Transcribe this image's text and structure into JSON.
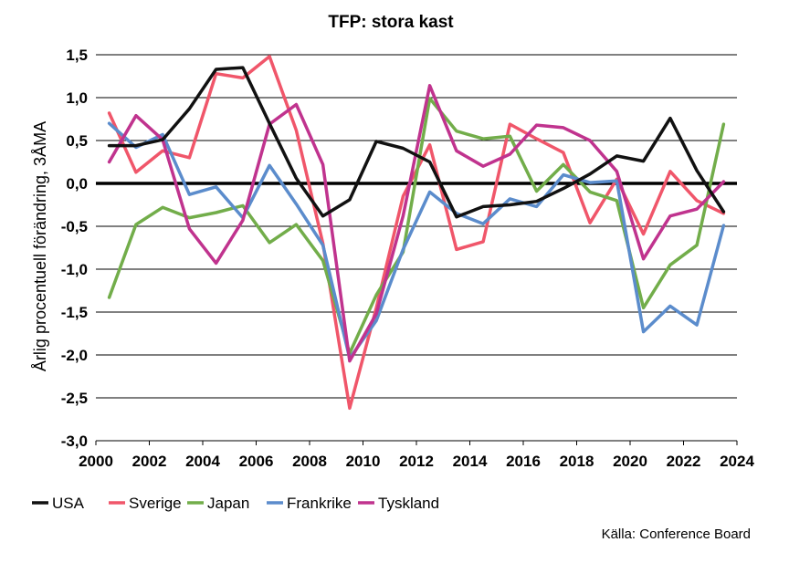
{
  "chart_data": {
    "type": "line",
    "title": "TFP: stora kast",
    "ylabel": "Årlig procentuell förändring, 3ÅMA",
    "xlabel": "",
    "source": "Källa: Conference Board",
    "ylim": [
      -3.0,
      1.5
    ],
    "xlim": [
      2000,
      2024
    ],
    "yticks": [
      "1,5",
      "1,0",
      "0,5",
      "0,0",
      "-0,5",
      "-1,0",
      "-1,5",
      "-2,0",
      "-2,5",
      "-3,0"
    ],
    "ytick_values": [
      1.5,
      1.0,
      0.5,
      0.0,
      -0.5,
      -1.0,
      -1.5,
      -2.0,
      -2.5,
      -3.0
    ],
    "xticks": [
      "2000",
      "2002",
      "2004",
      "2006",
      "2008",
      "2010",
      "2012",
      "2014",
      "2016",
      "2018",
      "2020",
      "2022",
      "2024"
    ],
    "xtick_values": [
      2000,
      2002,
      2004,
      2006,
      2008,
      2010,
      2012,
      2014,
      2016,
      2018,
      2020,
      2022,
      2024
    ],
    "grid": "horizontal",
    "legend_position": "bottom",
    "x": [
      2000.5,
      2001.5,
      2002.5,
      2003.5,
      2004.5,
      2005.5,
      2006.5,
      2007.5,
      2008.5,
      2009.5,
      2010.5,
      2011.5,
      2012.5,
      2013.5,
      2014.5,
      2015.5,
      2016.5,
      2017.5,
      2018.5,
      2019.5,
      2020.5,
      2021.5,
      2022.5,
      2023.5
    ],
    "series": [
      {
        "name": "Sverige",
        "color": "#f0566a",
        "values": [
          0.82,
          0.13,
          0.38,
          0.3,
          1.28,
          1.23,
          1.48,
          0.62,
          -0.7,
          -2.62,
          -1.45,
          -0.15,
          0.45,
          -0.77,
          -0.68,
          0.69,
          0.52,
          0.36,
          -0.46,
          0.05,
          -0.59,
          0.14,
          -0.2,
          -0.35
        ]
      },
      {
        "name": "Japan",
        "color": "#72ad4a",
        "values": [
          -1.33,
          -0.48,
          -0.28,
          -0.4,
          -0.34,
          -0.26,
          -0.69,
          -0.48,
          -0.9,
          -1.98,
          -1.3,
          -0.8,
          0.99,
          0.61,
          0.52,
          0.55,
          -0.09,
          0.22,
          -0.1,
          -0.2,
          -1.45,
          -0.95,
          -0.72,
          0.69
        ]
      },
      {
        "name": "Frankrike",
        "color": "#5b8ccc",
        "values": [
          0.7,
          0.42,
          0.57,
          -0.13,
          -0.04,
          -0.4,
          0.21,
          -0.24,
          -0.72,
          -2.04,
          -1.6,
          -0.77,
          -0.1,
          -0.35,
          -0.47,
          -0.18,
          -0.27,
          0.1,
          0.01,
          0.03,
          -1.73,
          -1.43,
          -1.65,
          -0.49
        ]
      },
      {
        "name": "Tyskland",
        "color": "#c0338e",
        "values": [
          0.25,
          0.79,
          0.51,
          -0.53,
          -0.93,
          -0.43,
          0.69,
          0.92,
          0.22,
          -2.07,
          -1.52,
          -0.38,
          1.14,
          0.38,
          0.2,
          0.34,
          0.68,
          0.65,
          0.5,
          0.14,
          -0.88,
          -0.38,
          -0.3,
          0.02
        ]
      },
      {
        "name": "USA",
        "color": "#111111",
        "values": [
          0.44,
          0.44,
          0.51,
          0.87,
          1.33,
          1.35,
          0.7,
          0.06,
          -0.38,
          -0.19,
          0.49,
          0.41,
          0.25,
          -0.39,
          -0.27,
          -0.25,
          -0.21,
          -0.06,
          0.11,
          0.32,
          0.26,
          0.76,
          0.15,
          -0.33
        ]
      }
    ],
    "legend_order": [
      "USA",
      "Sverige",
      "Japan",
      "Frankrike",
      "Tyskland"
    ]
  }
}
